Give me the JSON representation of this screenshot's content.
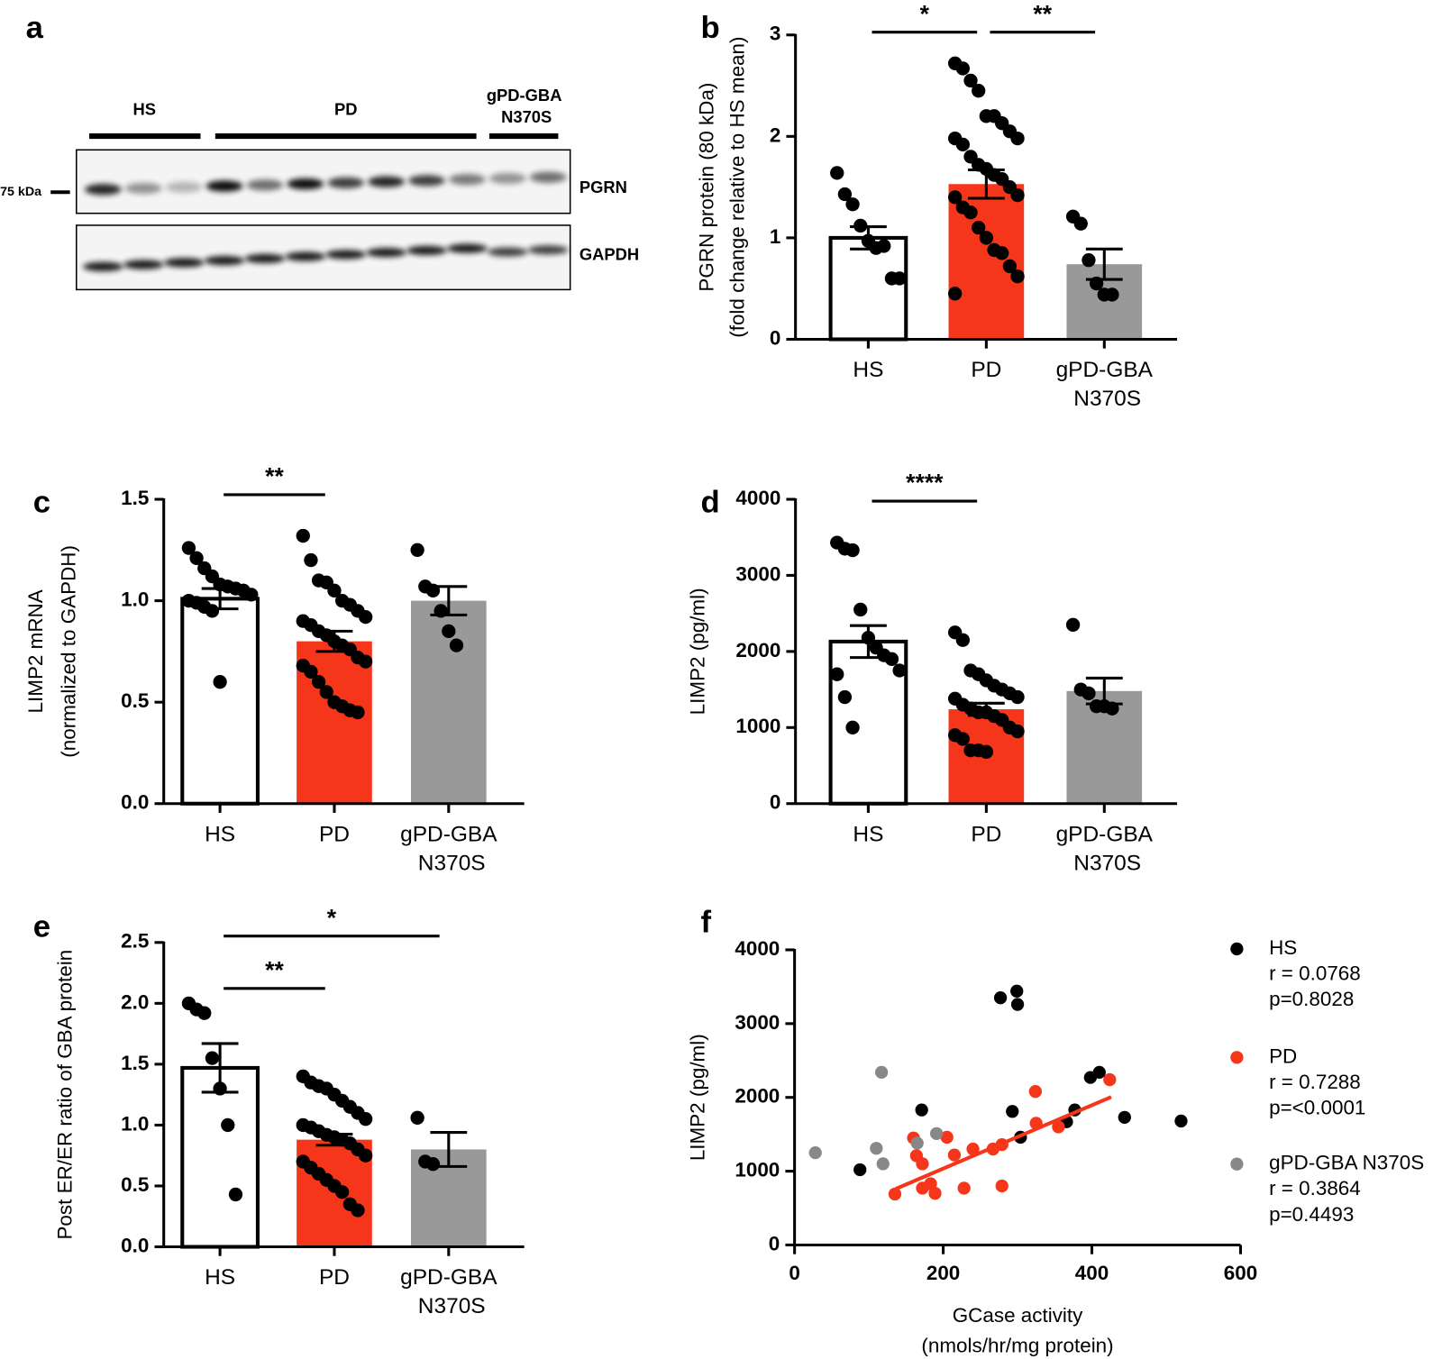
{
  "blot": {
    "panel": "a",
    "groups": [
      "HS",
      "PD",
      "gPD-GBA N370S"
    ],
    "marker": "75 kDa",
    "bands": [
      "PGRN",
      "GAPDH"
    ]
  },
  "chart_data": [
    {
      "type": "bar",
      "panel": "b",
      "ylabel": [
        "PGRN protein (80 kDa)",
        "(fold change relative to HS mean)"
      ],
      "categories": [
        "HS",
        "PD",
        "gPD-GBA N370S"
      ],
      "colors": [
        "#ffffff",
        "#f5361a",
        "#999999"
      ],
      "values": [
        1.0,
        1.53,
        0.74
      ],
      "errors": [
        0.11,
        0.14,
        0.15
      ],
      "points": [
        [
          1.64,
          1.43,
          1.33,
          1.12,
          0.97,
          0.9,
          0.92,
          0.6,
          0.6
        ],
        [
          2.72,
          2.67,
          2.55,
          2.45,
          2.2,
          2.2,
          2.13,
          2.05,
          1.98,
          1.98,
          1.92,
          1.8,
          1.72,
          1.68,
          1.62,
          1.58,
          1.5,
          1.42,
          1.4,
          1.3,
          1.25,
          1.1,
          1.0,
          0.88,
          0.85,
          0.72,
          0.62,
          0.45
        ],
        [
          1.21,
          1.14,
          0.78,
          0.55,
          0.44,
          0.44
        ]
      ],
      "ylim": [
        0,
        3
      ],
      "yticks": [
        0,
        1,
        2,
        3
      ],
      "significance": [
        {
          "between": [
            "HS",
            "PD"
          ],
          "label": "*"
        },
        {
          "between": [
            "PD",
            "gPD-GBA N370S"
          ],
          "label": "**"
        }
      ]
    },
    {
      "type": "bar",
      "panel": "c",
      "ylabel": [
        "LIMP2 mRNA",
        "(normalized to GAPDH)"
      ],
      "categories": [
        "HS",
        "PD",
        "gPD-GBA N370S"
      ],
      "colors": [
        "#ffffff",
        "#f5361a",
        "#999999"
      ],
      "values": [
        1.01,
        0.8,
        1.0
      ],
      "errors": [
        0.05,
        0.05,
        0.07
      ],
      "points": [
        [
          1.26,
          1.21,
          1.16,
          1.12,
          1.08,
          1.07,
          1.06,
          1.05,
          1.03,
          1.0,
          0.99,
          0.97,
          0.95,
          0.6
        ],
        [
          1.32,
          1.2,
          1.1,
          1.09,
          1.05,
          1.0,
          0.98,
          0.95,
          0.92,
          0.9,
          0.88,
          0.85,
          0.83,
          0.8,
          0.78,
          0.76,
          0.72,
          0.7,
          0.68,
          0.65,
          0.6,
          0.55,
          0.5,
          0.48,
          0.46,
          0.45
        ],
        [
          1.25,
          1.07,
          1.05,
          0.95,
          0.85,
          0.78
        ]
      ],
      "ylim": [
        0,
        1.5
      ],
      "yticks": [
        {
          "value": 0,
          "label": "0.0"
        },
        0.5,
        {
          "value": 1,
          "label": "1.0"
        },
        1.5
      ],
      "significance": [
        {
          "between": [
            "HS",
            "PD"
          ],
          "label": "**"
        }
      ]
    },
    {
      "type": "bar",
      "panel": "d",
      "ylabel": [
        "LIMP2 (pg/ml)"
      ],
      "categories": [
        "HS",
        "PD",
        "gPD-GBA N370S"
      ],
      "colors": [
        "#ffffff",
        "#f5361a",
        "#999999"
      ],
      "values": [
        2130,
        1240,
        1480
      ],
      "errors": [
        210,
        80,
        170
      ],
      "points": [
        [
          3430,
          3350,
          3330,
          2550,
          2180,
          2050,
          1950,
          1900,
          1750,
          1700,
          1400,
          1000
        ],
        [
          2250,
          2150,
          1750,
          1700,
          1620,
          1550,
          1500,
          1450,
          1400,
          1380,
          1300,
          1250,
          1200,
          1200,
          1150,
          1100,
          1000,
          950,
          900,
          850,
          700,
          700,
          680
        ],
        [
          2350,
          1500,
          1450,
          1280,
          1280,
          1250
        ]
      ],
      "ylim": [
        0,
        4000
      ],
      "yticks": [
        0,
        1000,
        2000,
        3000,
        4000
      ],
      "significance": [
        {
          "between": [
            "HS",
            "PD"
          ],
          "label": "****"
        }
      ]
    },
    {
      "type": "bar",
      "panel": "e",
      "ylabel": [
        "Post ER/ER ratio of GBA protein"
      ],
      "categories": [
        "HS",
        "PD",
        "gPD-GBA N370S"
      ],
      "colors": [
        "#ffffff",
        "#f5361a",
        "#999999"
      ],
      "values": [
        1.47,
        0.88,
        0.8
      ],
      "errors": [
        0.2,
        0.045,
        0.14
      ],
      "points": [
        [
          2.0,
          1.95,
          1.92,
          1.55,
          1.3,
          1.0,
          0.43
        ],
        [
          1.4,
          1.35,
          1.32,
          1.3,
          1.25,
          1.2,
          1.15,
          1.1,
          1.05,
          1.0,
          0.98,
          0.95,
          0.92,
          0.9,
          0.88,
          0.85,
          0.8,
          0.75,
          0.7,
          0.65,
          0.6,
          0.55,
          0.5,
          0.45,
          0.35,
          0.3
        ],
        [
          1.06,
          0.7,
          0.68
        ]
      ],
      "ylim": [
        0,
        2.5
      ],
      "yticks": [
        {
          "value": 0,
          "label": "0.0"
        },
        0.5,
        {
          "value": 1,
          "label": "1.0"
        },
        1.5,
        {
          "value": 2,
          "label": "2.0"
        },
        2.5
      ],
      "significance": [
        {
          "between": [
            "HS",
            "PD"
          ],
          "label": "**"
        },
        {
          "between": [
            "HS",
            "gPD-GBA N370S"
          ],
          "label": "*"
        }
      ]
    },
    {
      "type": "scatter",
      "panel": "f",
      "ylabel": [
        "LIMP2 (pg/ml)"
      ],
      "xlabel": [
        "GCase activity",
        "(nmols/hr/mg protein)"
      ],
      "xlim": [
        0,
        600
      ],
      "ylim": [
        0,
        4000
      ],
      "xticks": [
        0,
        200,
        400,
        600
      ],
      "yticks": [
        0,
        1000,
        2000,
        3000,
        4000
      ],
      "series": [
        {
          "name": "HS",
          "color": "#000000",
          "r": "r = 0.0768",
          "p": "p=0.8028",
          "x": [
            88,
            171,
            277,
            299,
            300,
            293,
            304,
            366,
            377,
            398,
            410,
            444,
            520
          ],
          "y": [
            1020,
            1830,
            3350,
            3440,
            3260,
            1810,
            1460,
            1670,
            1830,
            2270,
            2340,
            1730,
            1680
          ]
        },
        {
          "name": "PD",
          "color": "#f5361a",
          "r": "r = 0.7288",
          "p": "p=<0.0001",
          "x": [
            424,
            324,
            355,
            325,
            279,
            267,
            240,
            215,
            205,
            160,
            164,
            172,
            183,
            172,
            189,
            135,
            228,
            279
          ],
          "y": [
            2240,
            2080,
            1600,
            1650,
            1360,
            1300,
            1300,
            1220,
            1460,
            1450,
            1210,
            1100,
            830,
            770,
            700,
            690,
            770,
            800
          ],
          "fit": {
            "x": [
              136,
              426
            ],
            "y": [
              760,
              2006
            ]
          }
        },
        {
          "name": "gPD-GBA N370S",
          "color": "#888888",
          "r": "r = 0.3864",
          "p": "p=0.4493",
          "x": [
            28,
            110,
            119,
            117,
            191,
            165
          ],
          "y": [
            1250,
            1310,
            1100,
            2340,
            1510,
            1380
          ]
        }
      ]
    }
  ]
}
